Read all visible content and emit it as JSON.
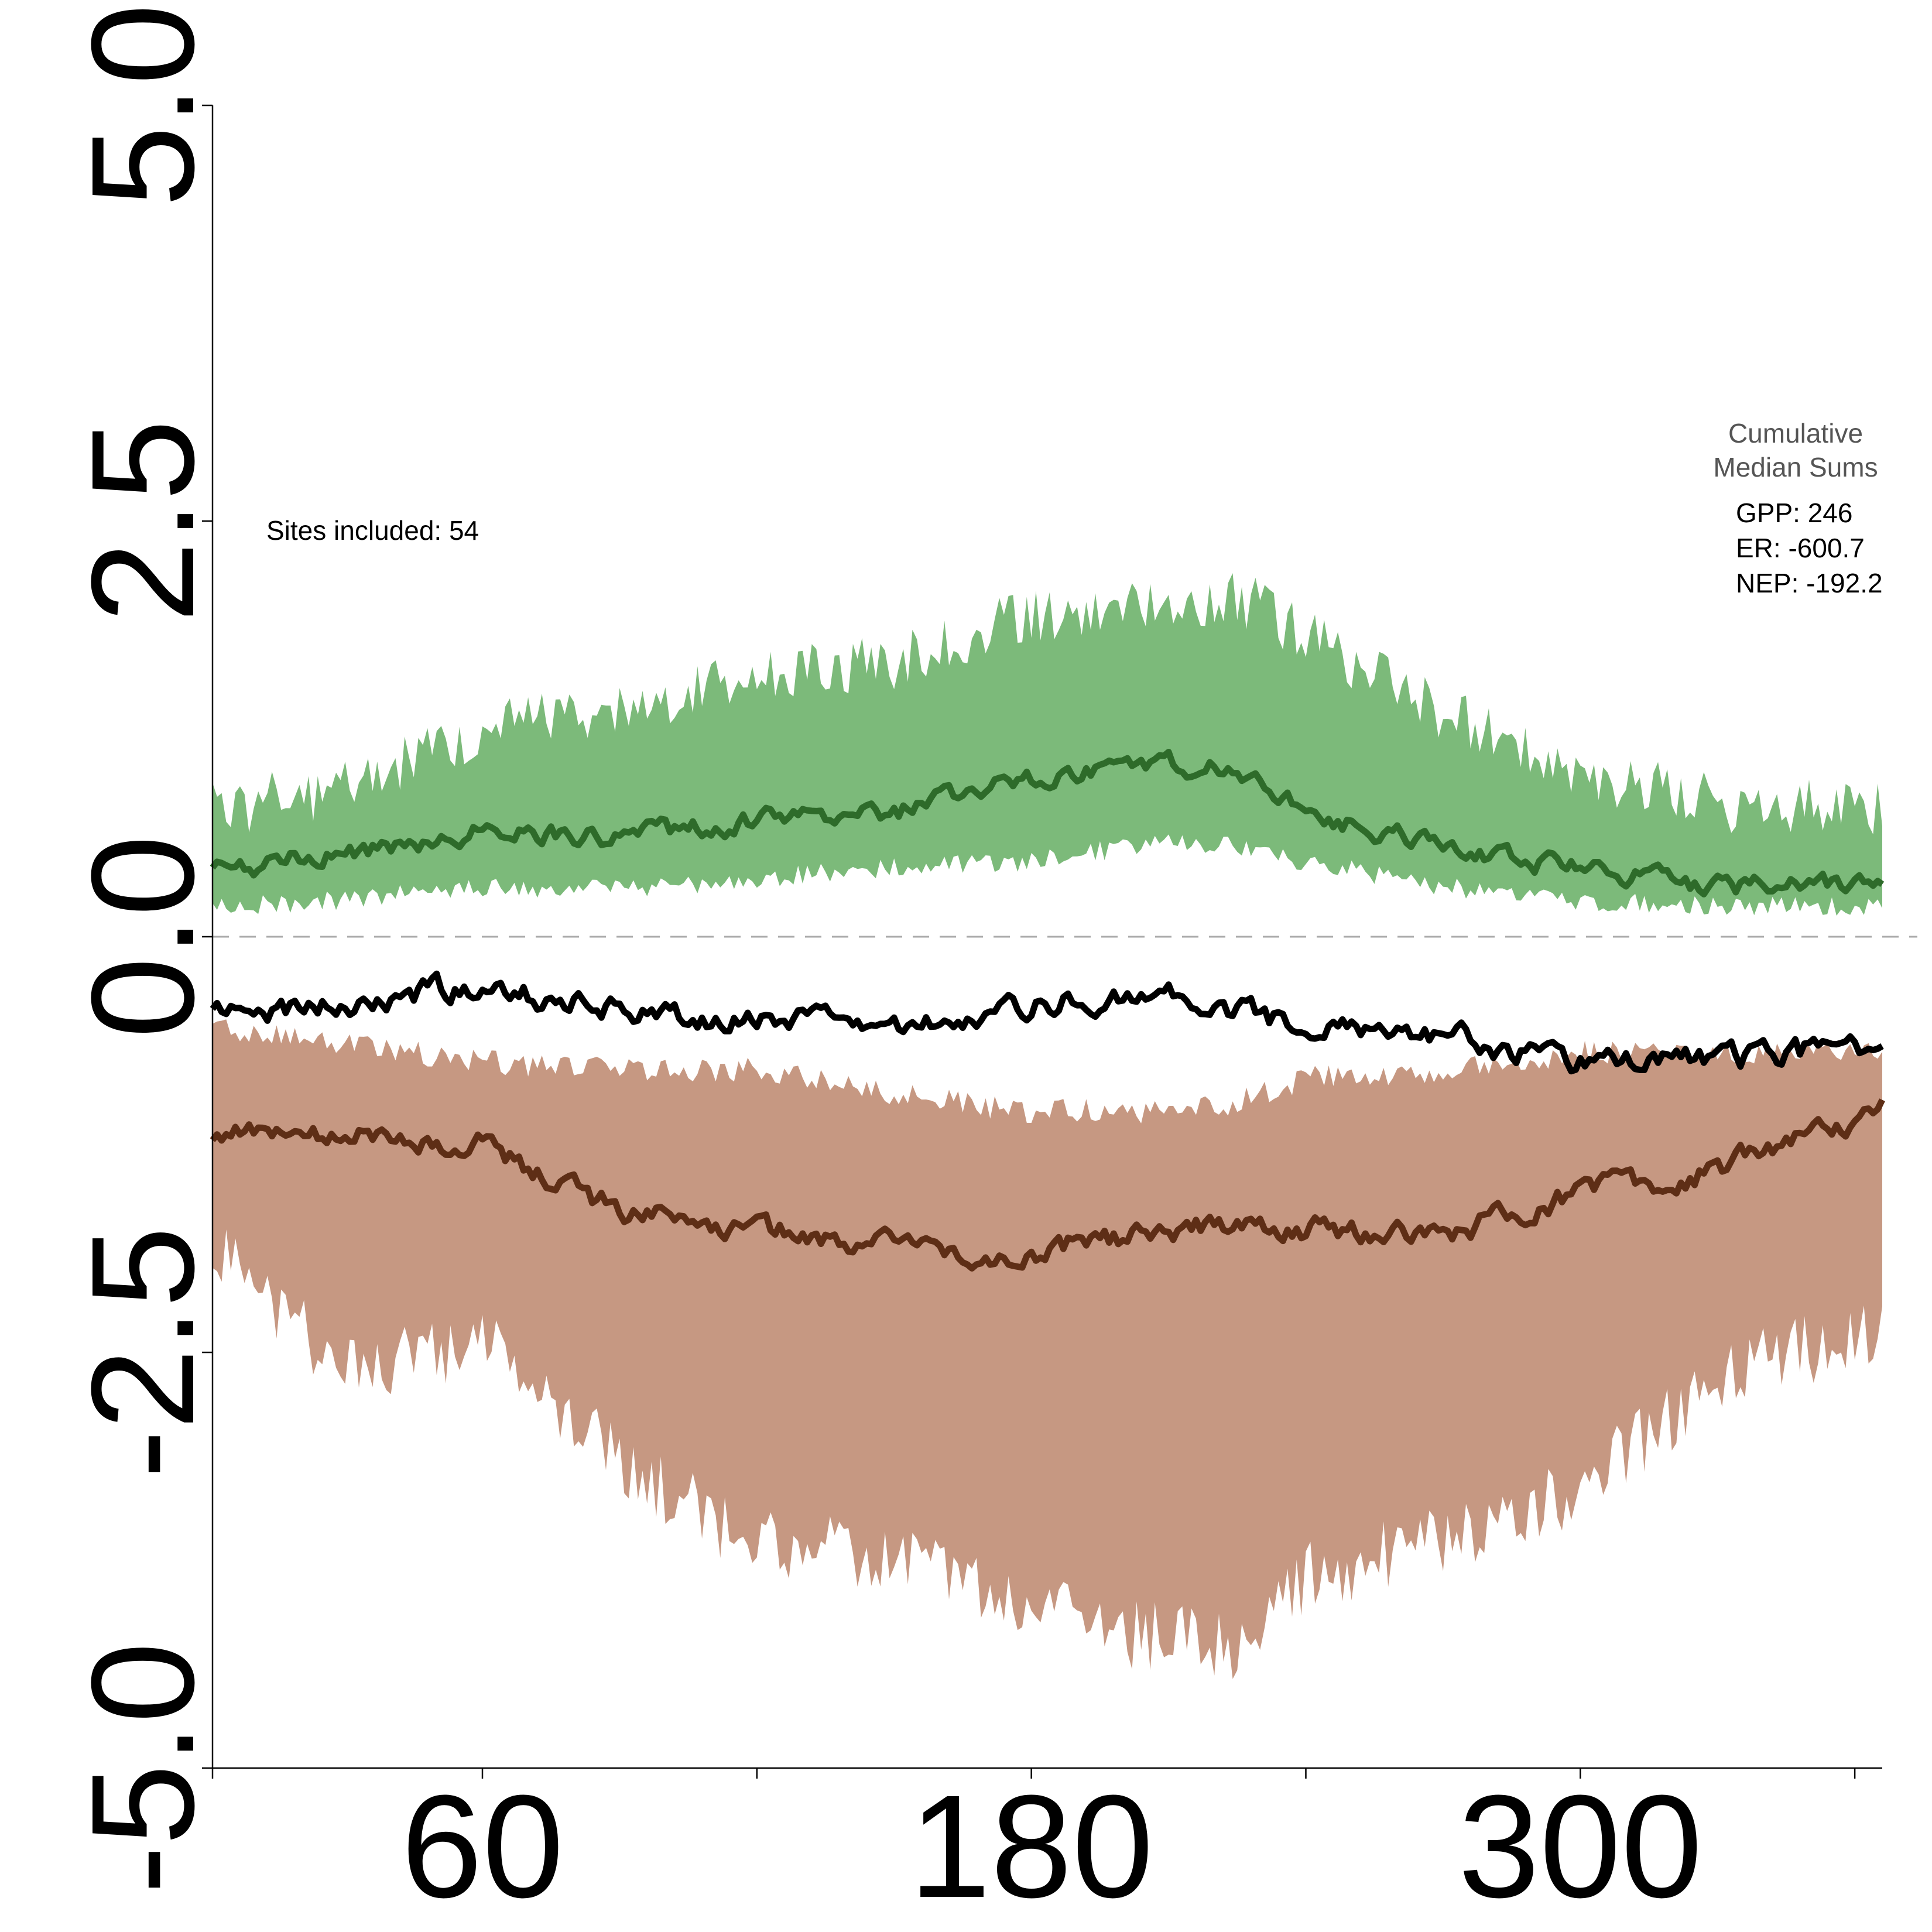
{
  "chart_data": {
    "type": "area",
    "title": "",
    "xlabel": "",
    "ylabel": "",
    "xlim": [
      1,
      366
    ],
    "ylim": [
      -5,
      5
    ],
    "x_ticks": [
      60,
      180,
      300
    ],
    "x_minor_ticks": [
      1,
      120,
      240,
      360
    ],
    "y_ticks": [
      -5,
      -2.5,
      0,
      2.5,
      5
    ],
    "x_tick_labels": [
      "60",
      "180",
      "300"
    ],
    "y_tick_labels": [
      "-5.0",
      "-2.5",
      "0.0",
      "2.5",
      "5.0"
    ],
    "zero_line": {
      "y": 0,
      "style": "dashed",
      "color": "#aaaaaa"
    },
    "grid": false,
    "colors": {
      "gpp_band": "#7cba7a",
      "gpp_median": "#2e6b2a",
      "er_band": "#c69882",
      "er_median": "#5e2e16",
      "nep_median": "#000000"
    },
    "series_profile": {
      "x": [
        1,
        30,
        60,
        90,
        120,
        150,
        180,
        210,
        225,
        240,
        270,
        300,
        330,
        366
      ],
      "gpp_median": [
        0.4,
        0.5,
        0.65,
        0.6,
        0.7,
        0.75,
        0.95,
        1.05,
        1.0,
        0.75,
        0.55,
        0.4,
        0.3,
        0.3
      ],
      "gpp_upper": [
        0.7,
        0.85,
        1.2,
        1.3,
        1.55,
        1.6,
        1.9,
        1.9,
        2.0,
        1.75,
        1.3,
        0.95,
        0.75,
        0.7
      ],
      "gpp_lower": [
        0.18,
        0.22,
        0.3,
        0.28,
        0.35,
        0.42,
        0.45,
        0.58,
        0.55,
        0.45,
        0.3,
        0.22,
        0.18,
        0.18
      ],
      "er_median": [
        -1.2,
        -1.2,
        -1.25,
        -1.65,
        -1.75,
        -1.85,
        -1.9,
        -1.75,
        -1.75,
        -1.75,
        -1.8,
        -1.55,
        -1.4,
        -1.05
      ],
      "er_upper": [
        -0.55,
        -0.65,
        -0.75,
        -0.8,
        -0.8,
        -0.95,
        -1.05,
        -1.05,
        -1.0,
        -0.85,
        -0.8,
        -0.7,
        -0.7,
        -0.7
      ],
      "er_lower": [
        -1.8,
        -2.6,
        -2.4,
        -3.1,
        -3.6,
        -3.7,
        -4.0,
        -4.2,
        -4.2,
        -3.8,
        -3.6,
        -3.3,
        -2.6,
        -2.3
      ],
      "nep_median": [
        -0.45,
        -0.4,
        -0.3,
        -0.45,
        -0.5,
        -0.55,
        -0.4,
        -0.35,
        -0.45,
        -0.55,
        -0.6,
        -0.75,
        -0.75,
        -0.65
      ]
    },
    "annotations": {
      "sites": "Sites included: 54"
    },
    "legend": {
      "title_line1": "Cumulative",
      "title_line2": "Median Sums",
      "gpp": "GPP: 246",
      "er": "ER: -600.7",
      "nep": "NEP: -192.2",
      "placement": "right"
    }
  }
}
